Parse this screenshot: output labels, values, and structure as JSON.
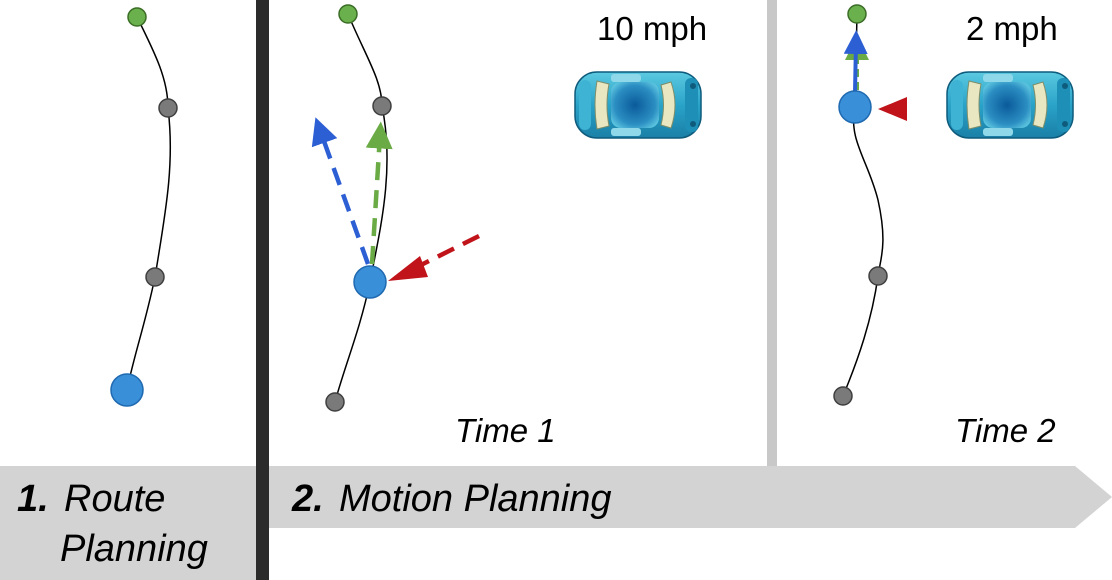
{
  "stages": {
    "route": {
      "number": "1.",
      "title_line1": "Route",
      "title_line2": "Planning"
    },
    "motion": {
      "number": "2.",
      "title": "Motion Planning"
    }
  },
  "panels": {
    "time1": {
      "label": "Time 1",
      "speed": "10 mph"
    },
    "time2": {
      "label": "Time 2",
      "speed": "2 mph"
    }
  },
  "colors": {
    "waypoint_gray": "#7a7a7a",
    "goal_green": "#6ab04c",
    "vehicle_blue": "#3a8fd9",
    "arrow_blue": "#2d5fd4",
    "arrow_green": "#6aab45",
    "arrow_red": "#c0131a",
    "banner_gray": "#d3d3d3",
    "divider_dark": "#2b2b2b",
    "divider_light": "#c8c8c8"
  },
  "icons": [
    "car-icon",
    "waypoint-icon",
    "vehicle-position-icon"
  ]
}
